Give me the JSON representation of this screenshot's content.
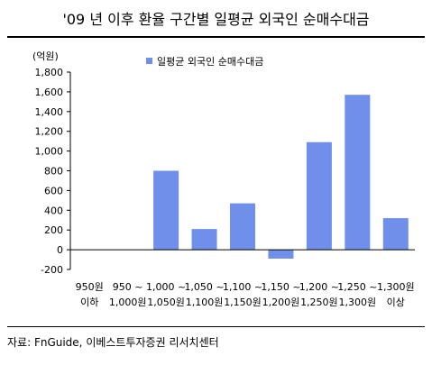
{
  "title": "'09 년 이후 환율 구간별 일평균 외국인 순매수대금",
  "source": "자료: FnGuide, 이베스트투자증권 리서치센터",
  "colors": {
    "bar": "#6f8fea",
    "axis": "#000000",
    "text": "#000000"
  },
  "chart_data": {
    "type": "bar",
    "ylabel": "(억원)",
    "ylim": [
      -200,
      1800
    ],
    "yticks": [
      -200,
      0,
      200,
      400,
      600,
      800,
      1000,
      1200,
      1400,
      1600,
      1800
    ],
    "ytick_labels": [
      "-200",
      "0",
      "200",
      "400",
      "600",
      "800",
      "1,000",
      "1,200",
      "1,400",
      "1,600",
      "1,800"
    ],
    "grid": false,
    "legend_position": "top-center",
    "categories": [
      [
        "950원",
        "이하"
      ],
      [
        "950 ~",
        "1,000원"
      ],
      [
        "1,000 ~",
        "1,050원"
      ],
      [
        "1,050 ~",
        "1,100원"
      ],
      [
        "1,100 ~",
        "1,150원"
      ],
      [
        "1,150 ~",
        "1,200원"
      ],
      [
        "1,200 ~",
        "1,250원"
      ],
      [
        "1,250 ~",
        "1,300원"
      ],
      [
        "1,300원",
        "이상"
      ]
    ],
    "series": [
      {
        "name": "일평균 외국인 순매수대금",
        "values": [
          0,
          0,
          800,
          210,
          470,
          -90,
          1090,
          1570,
          320
        ]
      }
    ]
  }
}
